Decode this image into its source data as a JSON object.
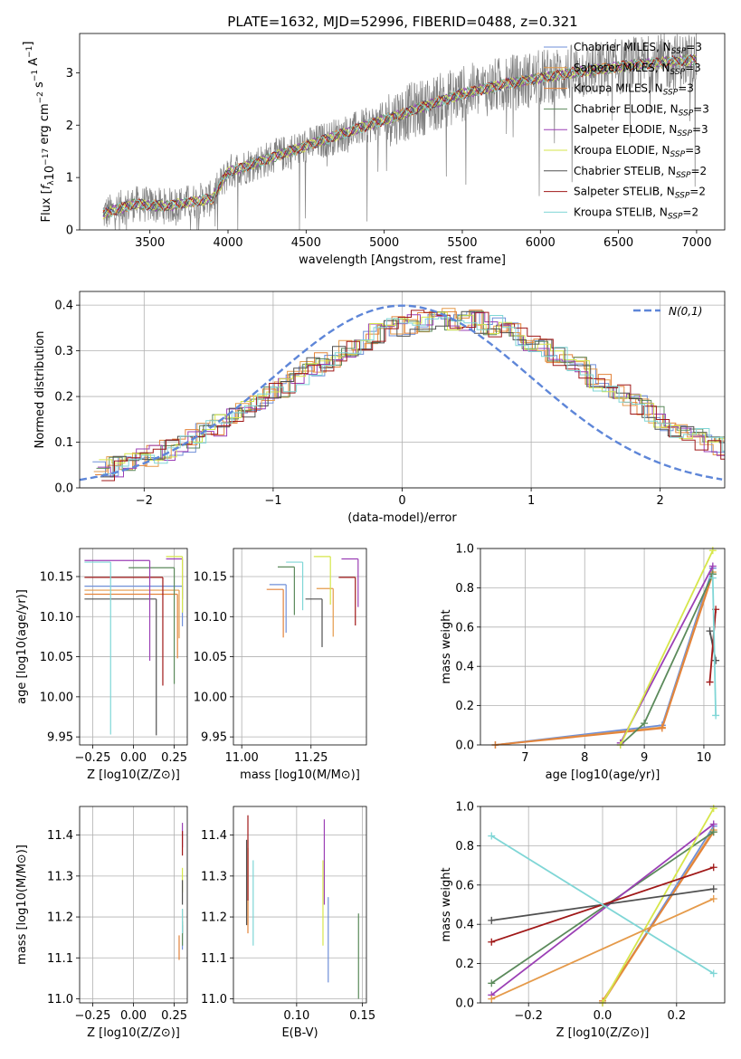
{
  "figure": {
    "title": "PLATE=1632, MJD=52996, FIBERID=0488, z=0.321"
  },
  "models": [
    {
      "name": "Chabrier MILES, N_SSP=3",
      "label_main": "Chabrier MILES, N",
      "label_sub": "SSP",
      "label_tail": "=3",
      "color": "#6f8fd8"
    },
    {
      "name": "Salpeter MILES, N_SSP=3",
      "label_main": "Salpeter MILES, N",
      "label_sub": "SSP",
      "label_tail": "=3",
      "color": "#e59a4a"
    },
    {
      "name": "Kroupa MILES, N_SSP=3",
      "label_main": "Kroupa MILES, N",
      "label_sub": "SSP",
      "label_tail": "=3",
      "color": "#e3833a"
    },
    {
      "name": "Chabrier ELODIE, N_SSP=3",
      "label_main": "Chabrier ELODIE, N",
      "label_sub": "SSP",
      "label_tail": "=3",
      "color": "#5b8a5b"
    },
    {
      "name": "Salpeter ELODIE, N_SSP=3",
      "label_main": "Salpeter ELODIE, N",
      "label_sub": "SSP",
      "label_tail": "=3",
      "color": "#9b3fb5"
    },
    {
      "name": "Kroupa ELODIE, N_SSP=3",
      "label_main": "Kroupa ELODIE, N",
      "label_sub": "SSP",
      "label_tail": "=3",
      "color": "#d6e64a"
    },
    {
      "name": "Chabrier STELIB, N_SSP=2",
      "label_main": "Chabrier STELIB, N",
      "label_sub": "SSP",
      "label_tail": "=2",
      "color": "#505050"
    },
    {
      "name": "Salpeter STELIB, N_SSP=2",
      "label_main": "Salpeter STELIB, N",
      "label_sub": "SSP",
      "label_tail": "=2",
      "color": "#a01818"
    },
    {
      "name": "Kroupa STELIB, N_SSP=2",
      "label_main": "Kroupa STELIB, N",
      "label_sub": "SSP",
      "label_tail": "=2",
      "color": "#7fd6d6"
    }
  ],
  "chart_data": [
    {
      "type": "line",
      "id": "spectrum",
      "xlabel": "wavelength [Angstrom, rest frame]",
      "ylabel": "Flux [f_λ 10^-17 erg cm^-2 s^-1 A^-1]",
      "xlim": [
        3050,
        7180
      ],
      "ylim": [
        0,
        3.75
      ],
      "xticks": [
        3500,
        4000,
        4500,
        5000,
        5500,
        6000,
        6500,
        7000
      ],
      "yticks": [
        0,
        1,
        2,
        3
      ],
      "continuum": {
        "x": [
          3200,
          3400,
          3600,
          3900,
          4000,
          4300,
          4600,
          4900,
          5200,
          5500,
          5800,
          6200,
          6600,
          7000
        ],
        "y": [
          0.3,
          0.5,
          0.45,
          0.6,
          1.1,
          1.4,
          1.7,
          2.0,
          2.3,
          2.6,
          2.8,
          3.0,
          3.15,
          3.25
        ]
      },
      "legend": "upper right",
      "grid": false
    },
    {
      "type": "line",
      "id": "residual-histogram",
      "xlabel": "(data-model)/error",
      "ylabel": "Normed distribution",
      "xlim": [
        -2.5,
        2.5
      ],
      "ylim": [
        0,
        0.43
      ],
      "xticks": [
        -2,
        -1,
        0,
        1,
        2
      ],
      "yticks": [
        0.0,
        0.1,
        0.2,
        0.3,
        0.4
      ],
      "gaussian_label": "N(0,1)",
      "bin_width": 0.1,
      "grid": true,
      "legend": "upper right"
    },
    {
      "type": "scatter",
      "id": "age-vs-Z",
      "xlabel": "Z [log10(Z/Z⊙)]",
      "ylabel": "age [log10(age/yr)]",
      "xlim": [
        -0.33,
        0.33
      ],
      "ylim": [
        9.94,
        10.185
      ],
      "xticks": [
        -0.25,
        0.0,
        0.25
      ],
      "yticks": [
        9.95,
        10.0,
        10.05,
        10.1,
        10.15
      ],
      "points": [
        {
          "x": 0.3,
          "y": 10.138,
          "xerr_lo": 0.6,
          "yerr_lo": 0.05,
          "model": 0
        },
        {
          "x": 0.28,
          "y": 10.133,
          "xerr_lo": 0.58,
          "yerr_lo": 0.06,
          "model": 1
        },
        {
          "x": 0.27,
          "y": 10.128,
          "xerr_lo": 0.57,
          "yerr_lo": 0.08,
          "model": 2
        },
        {
          "x": 0.25,
          "y": 10.161,
          "xerr_lo": 0.28,
          "yerr_lo": 0.145,
          "model": 3
        },
        {
          "x": 0.3,
          "y": 10.172,
          "xerr_lo": 0.1,
          "yerr_lo": 0.05,
          "model": 4
        },
        {
          "x": 0.3,
          "y": 10.175,
          "xerr_lo": 0.1,
          "yerr_lo": 0.07,
          "model": 5
        },
        {
          "x": 0.14,
          "y": 10.122,
          "xerr_lo": 0.44,
          "yerr_lo": 0.17,
          "model": 6
        },
        {
          "x": 0.18,
          "y": 10.149,
          "xerr_lo": 0.48,
          "yerr_lo": 0.135,
          "model": 7
        },
        {
          "x": -0.14,
          "y": 10.168,
          "xerr_lo": 0.16,
          "yerr_lo": 0.215,
          "model": 8
        },
        {
          "x": 0.1,
          "y": 10.17,
          "xerr_lo": 0.4,
          "yerr_lo": 0.125,
          "model": 4
        }
      ]
    },
    {
      "type": "scatter",
      "id": "age-vs-mass",
      "xlabel": "mass [log10(M/M⊙)]",
      "ylabel": "",
      "xlim": [
        10.97,
        11.45
      ],
      "ylim": [
        9.94,
        10.185
      ],
      "xticks": [
        11.0,
        11.25
      ],
      "yticks": [
        9.95,
        10.0,
        10.05,
        10.1,
        10.15
      ],
      "points": [
        {
          "x": 11.16,
          "y": 10.14,
          "model": 0
        },
        {
          "x": 11.33,
          "y": 10.135,
          "model": 1
        },
        {
          "x": 11.15,
          "y": 10.134,
          "model": 2
        },
        {
          "x": 11.19,
          "y": 10.162,
          "model": 3
        },
        {
          "x": 11.42,
          "y": 10.172,
          "model": 4
        },
        {
          "x": 11.32,
          "y": 10.175,
          "model": 5
        },
        {
          "x": 11.29,
          "y": 10.122,
          "model": 6
        },
        {
          "x": 11.41,
          "y": 10.149,
          "model": 7
        },
        {
          "x": 11.22,
          "y": 10.168,
          "model": 8
        }
      ]
    },
    {
      "type": "line",
      "id": "massweight-vs-age",
      "xlabel": "age [log10(age/yr)]",
      "ylabel": "mass weight",
      "xlim": [
        6.25,
        10.35
      ],
      "ylim": [
        0.0,
        1.0
      ],
      "xticks": [
        7,
        8,
        9,
        10
      ],
      "yticks": [
        0.0,
        0.2,
        0.4,
        0.6,
        0.8,
        1.0
      ],
      "grid": true,
      "series": [
        {
          "model": 0,
          "x": [
            6.5,
            9.3,
            10.15
          ],
          "y": [
            0.0,
            0.1,
            0.9
          ]
        },
        {
          "model": 1,
          "x": [
            6.5,
            9.3,
            10.15
          ],
          "y": [
            0.0,
            0.09,
            0.88
          ]
        },
        {
          "model": 2,
          "x": [
            6.5,
            9.3,
            10.15
          ],
          "y": [
            0.0,
            0.085,
            0.87
          ]
        },
        {
          "model": 3,
          "x": [
            8.6,
            9.0,
            10.15
          ],
          "y": [
            0.0,
            0.11,
            0.87
          ]
        },
        {
          "model": 4,
          "x": [
            8.6,
            10.15
          ],
          "y": [
            0.01,
            0.91
          ]
        },
        {
          "model": 5,
          "x": [
            8.6,
            10.15
          ],
          "y": [
            0.0,
            0.99
          ]
        },
        {
          "model": 6,
          "x": [
            10.1,
            10.2
          ],
          "y": [
            0.58,
            0.43
          ]
        },
        {
          "model": 7,
          "x": [
            10.1,
            10.2
          ],
          "y": [
            0.32,
            0.69
          ]
        },
        {
          "model": 8,
          "x": [
            10.15,
            10.2
          ],
          "y": [
            0.85,
            0.15
          ]
        }
      ]
    },
    {
      "type": "scatter",
      "id": "mass-vs-Z",
      "xlabel": "Z [log10(Z/Z⊙)]",
      "ylabel": "mass [log10(M/M⊙)]",
      "xlim": [
        -0.33,
        0.33
      ],
      "ylim": [
        10.99,
        11.47
      ],
      "xticks": [
        -0.25,
        0.0,
        0.25
      ],
      "yticks": [
        11.0,
        11.1,
        11.2,
        11.3,
        11.4
      ],
      "points": [
        {
          "x": 0.3,
          "y": 11.18,
          "model": 0
        },
        {
          "x": 0.3,
          "y": 11.218,
          "model": 1
        },
        {
          "x": 0.28,
          "y": 11.155,
          "model": 2
        },
        {
          "x": 0.3,
          "y": 11.19,
          "model": 3
        },
        {
          "x": 0.3,
          "y": 11.43,
          "model": 4
        },
        {
          "x": 0.3,
          "y": 11.32,
          "model": 5
        },
        {
          "x": 0.3,
          "y": 11.29,
          "model": 6
        },
        {
          "x": 0.3,
          "y": 11.41,
          "model": 7
        },
        {
          "x": 0.3,
          "y": 11.22,
          "model": 8
        }
      ]
    },
    {
      "type": "scatter",
      "id": "mass-vs-ebv",
      "xlabel": "E(B-V)",
      "ylabel": "",
      "xlim": [
        0.052,
        0.153
      ],
      "ylim": [
        10.99,
        11.47
      ],
      "xticks": [
        0.1,
        0.15
      ],
      "yticks": [
        11.0,
        11.1,
        11.2,
        11.3,
        11.4
      ],
      "points": [
        {
          "x": 0.124,
          "y": 11.16,
          "model": 0
        },
        {
          "x": 0.063,
          "y": 11.3,
          "model": 1
        },
        {
          "x": 0.063,
          "y": 11.28,
          "model": 2
        },
        {
          "x": 0.147,
          "y": 11.12,
          "model": 3
        },
        {
          "x": 0.121,
          "y": 11.35,
          "model": 4
        },
        {
          "x": 0.12,
          "y": 11.25,
          "model": 5
        },
        {
          "x": 0.062,
          "y": 11.3,
          "model": 6
        },
        {
          "x": 0.063,
          "y": 11.36,
          "model": 7
        },
        {
          "x": 0.067,
          "y": 11.25,
          "model": 8
        }
      ]
    },
    {
      "type": "line",
      "id": "massweight-vs-Z",
      "xlabel": "Z [log10(Z/Z⊙)]",
      "ylabel": "mass weight",
      "xlim": [
        -0.33,
        0.33
      ],
      "ylim": [
        0.0,
        1.0
      ],
      "xticks": [
        -0.2,
        0.0,
        0.2
      ],
      "yticks": [
        0.0,
        0.2,
        0.4,
        0.6,
        0.8,
        1.0
      ],
      "grid": true,
      "series": [
        {
          "model": 0,
          "x": [
            0.0,
            0.3
          ],
          "y": [
            0.0,
            0.9
          ]
        },
        {
          "model": 1,
          "x": [
            0.0,
            0.3
          ],
          "y": [
            0.0,
            0.88
          ]
        },
        {
          "model": 2,
          "x": [
            0.0,
            0.3
          ],
          "y": [
            0.01,
            0.87
          ]
        },
        {
          "model": 3,
          "x": [
            -0.3,
            0.3
          ],
          "y": [
            0.1,
            0.87
          ]
        },
        {
          "model": 4,
          "x": [
            -0.3,
            0.3
          ],
          "y": [
            0.04,
            0.91
          ]
        },
        {
          "model": 5,
          "x": [
            0.0,
            0.3
          ],
          "y": [
            0.0,
            0.99
          ]
        },
        {
          "model": 6,
          "x": [
            -0.3,
            0.3
          ],
          "y": [
            0.42,
            0.58
          ]
        },
        {
          "model": 7,
          "x": [
            -0.3,
            0.3
          ],
          "y": [
            0.31,
            0.69
          ]
        },
        {
          "model": 8,
          "x": [
            -0.3,
            0.3
          ],
          "y": [
            0.85,
            0.15
          ]
        },
        {
          "model": 1,
          "x": [
            -0.3,
            0.3
          ],
          "y": [
            0.02,
            0.53
          ]
        }
      ]
    }
  ]
}
